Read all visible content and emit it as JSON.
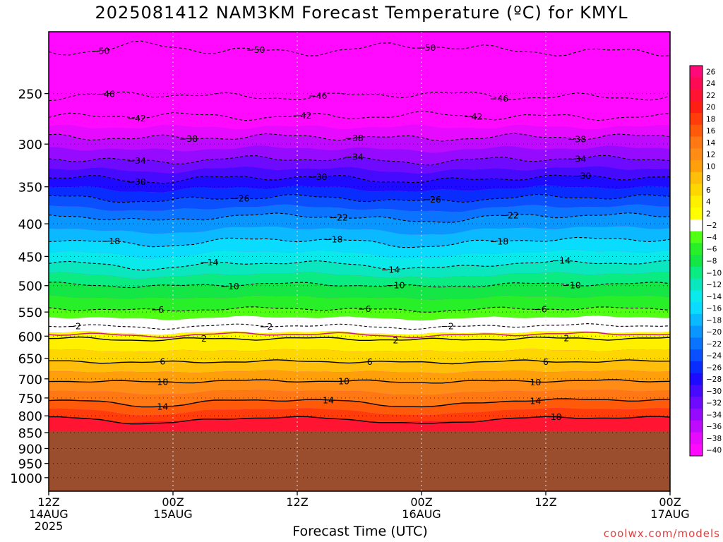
{
  "title": "2025081412 NAM3KM Forecast Temperature (ºC) for KMYL",
  "xlabel": "Forecast Time (UTC)",
  "credit": "coolwx.com/models",
  "chart_data": {
    "type": "heatmap",
    "title": "2025081412 NAM3KM Forecast Temperature (ºC) for KMYL",
    "xlabel": "Forecast Time (UTC)",
    "ylabel": "",
    "x_ticks": [
      {
        "hour": 0,
        "lines": [
          "12Z",
          "14AUG",
          "2025"
        ]
      },
      {
        "hour": 12,
        "lines": [
          "00Z",
          "15AUG"
        ]
      },
      {
        "hour": 24,
        "lines": [
          "12Z"
        ]
      },
      {
        "hour": 36,
        "lines": [
          "00Z",
          "16AUG"
        ]
      },
      {
        "hour": 48,
        "lines": [
          "12Z"
        ]
      },
      {
        "hour": 60,
        "lines": [
          "00Z",
          "17AUG"
        ]
      }
    ],
    "xlim_hours": [
      0,
      60
    ],
    "y_ticks": [
      250,
      300,
      350,
      400,
      450,
      500,
      550,
      600,
      650,
      700,
      750,
      800,
      850,
      900,
      950,
      1000
    ],
    "ylim_hpa": [
      200,
      1050
    ],
    "y_scale": "log",
    "ground_below_hpa": 845,
    "ground_color": "#9a4e2e",
    "grid": "dotted",
    "contour_interval_c": 4,
    "contours": [
      {
        "value": -50,
        "label": "−50",
        "base_hpa": 215,
        "amp": -5,
        "labels_at": [
          5,
          20,
          36.5
        ]
      },
      {
        "value": -46,
        "label": "−46",
        "base_hpa": 253,
        "amp": -3,
        "labels_at": [
          5.5,
          26,
          43.5
        ]
      },
      {
        "value": -42,
        "label": "−42",
        "base_hpa": 272,
        "amp": -2,
        "labels_at": [
          8.5,
          24.5,
          41
        ]
      },
      {
        "value": -38,
        "label": "−38",
        "base_hpa": 292,
        "amp": 2,
        "labels_at": [
          13.5,
          29.5,
          51
        ]
      },
      {
        "value": -34,
        "label": "−34",
        "base_hpa": 316,
        "amp": 4,
        "labels_at": [
          8.5,
          29.5,
          51
        ]
      },
      {
        "value": -30,
        "label": "−30",
        "base_hpa": 338,
        "amp": 5,
        "labels_at": [
          8.5,
          26,
          51.5
        ]
      },
      {
        "value": -26,
        "label": "−26",
        "base_hpa": 363,
        "amp": 6,
        "labels_at": [
          18.5,
          37
        ]
      },
      {
        "value": -22,
        "label": "−22",
        "base_hpa": 388,
        "amp": 8,
        "labels_at": [
          28,
          44.5
        ]
      },
      {
        "value": -18,
        "label": "−18",
        "base_hpa": 423,
        "amp": 10,
        "labels_at": [
          6,
          27.5,
          43.5
        ]
      },
      {
        "value": -14,
        "label": "−14",
        "base_hpa": 460,
        "amp": 10,
        "labels_at": [
          15.5,
          33,
          49.5
        ]
      },
      {
        "value": -10,
        "label": "−10",
        "base_hpa": 497,
        "amp": 5,
        "labels_at": [
          17.5,
          33.5,
          50.5
        ]
      },
      {
        "value": -6,
        "label": "−6",
        "base_hpa": 543,
        "amp": 4,
        "labels_at": [
          10.5,
          30.5,
          47.5
        ]
      },
      {
        "value": -2,
        "label": "−2",
        "base_hpa": 577,
        "amp": 5,
        "labels_at": [
          2.5,
          21,
          38.5
        ]
      },
      {
        "value": 2,
        "label": "2",
        "base_hpa": 605,
        "amp": 3,
        "labels_at": [
          15,
          33.5,
          50
        ]
      },
      {
        "value": 6,
        "label": "6",
        "base_hpa": 657,
        "amp": 3,
        "labels_at": [
          11,
          31,
          48
        ]
      },
      {
        "value": 10,
        "label": "10",
        "base_hpa": 705,
        "amp": 3,
        "labels_at": [
          11,
          28.5,
          47
        ]
      },
      {
        "value": 14,
        "label": "14",
        "base_hpa": 755,
        "amp": 18,
        "labels_at": [
          11,
          27,
          47
        ]
      },
      {
        "value": 18,
        "label": "18",
        "base_hpa": 805,
        "amp": 18,
        "labels_at": [
          49
        ]
      }
    ],
    "colorbar": {
      "labels": [
        "26",
        "24",
        "22",
        "20",
        "18",
        "16",
        "14",
        "12",
        "10",
        "8",
        "6",
        "4",
        "2",
        "−2",
        "−4",
        "−6",
        "−8",
        "−10",
        "−12",
        "−14",
        "−16",
        "−18",
        "−20",
        "−22",
        "−24",
        "−26",
        "−28",
        "−30",
        "−32",
        "−34",
        "−36",
        "−38",
        "−40"
      ],
      "colors": [
        "#ff0a78",
        "#ff0a55",
        "#ff1432",
        "#ff1e14",
        "#ff3c0a",
        "#ff5a0a",
        "#ff7814",
        "#ff8c14",
        "#ffa00a",
        "#ffbe0a",
        "#ffd700",
        "#fff000",
        "#ffff00",
        "#ffffff",
        "#50ff14",
        "#28f028",
        "#14e646",
        "#0aeb82",
        "#0ae6be",
        "#0aeaea",
        "#0adcff",
        "#0ab9ff",
        "#0a96ff",
        "#0a73ff",
        "#0a50ff",
        "#0a2dff",
        "#1e0aff",
        "#460aff",
        "#6e0aff",
        "#960aff",
        "#be0aff",
        "#e60aff",
        "#ff0aff"
      ]
    }
  }
}
